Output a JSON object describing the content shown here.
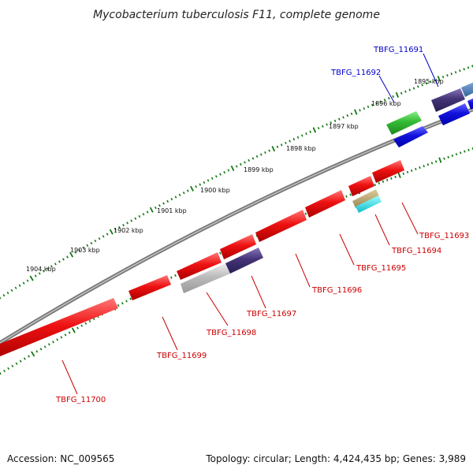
{
  "title": "Mycobacterium tuberculosis F11, complete genome",
  "footer": {
    "accession": "Accession: NC_009565",
    "summary": "Topology: circular; Length: 4,424,435 bp; Genes: 3,989"
  },
  "colors": {
    "backbone": "#7a7a7a",
    "tick": "#117711",
    "red_gene": "#ee1111",
    "blue_gene": "#1111dd",
    "green_gene": "#33bb33",
    "navy_gene": "#443377",
    "grey_gene": "#bbbbbb",
    "tan_gene": "#bbaa77",
    "cyan_gene": "#22dddd",
    "steel_gene": "#4477aa"
  },
  "kbp_labels": [
    "1904 kbp",
    "1903 kbp",
    "1902 kbp",
    "1901 kbp",
    "1900 kbp",
    "1899 kbp",
    "1898 kbp",
    "1897 kbp",
    "1896 kbp",
    "1895 kbp"
  ],
  "gene_labels": {
    "top": [
      "TBFG_11691",
      "TBFG_11692"
    ],
    "bottom": [
      "TBFG_11693",
      "TBFG_11694",
      "TBFG_11695",
      "TBFG_11696",
      "TBFG_11697",
      "TBFG_11698",
      "TBFG_11699",
      "TBFG_11700"
    ]
  }
}
